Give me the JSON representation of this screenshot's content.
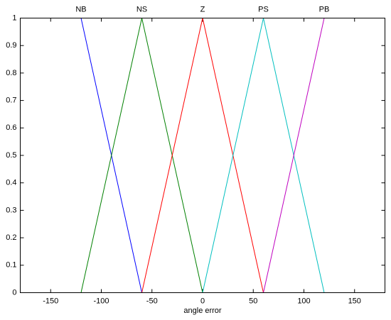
{
  "chart_data": {
    "type": "line",
    "xlabel": "angle error",
    "x": [
      -180,
      -120,
      -60,
      0,
      60,
      120,
      180
    ],
    "series": [
      {
        "name": "NB",
        "color": "#0000ff",
        "values": [
          1,
          1,
          0,
          0,
          0,
          0,
          0
        ]
      },
      {
        "name": "NS",
        "color": "#008000",
        "values": [
          0,
          0,
          1,
          0,
          0,
          0,
          0
        ]
      },
      {
        "name": "Z",
        "color": "#ff0000",
        "values": [
          0,
          0,
          0,
          1,
          0,
          0,
          0
        ]
      },
      {
        "name": "PS",
        "color": "#00bfbf",
        "values": [
          0,
          0,
          0,
          0,
          1,
          0,
          0
        ]
      },
      {
        "name": "PB",
        "color": "#bf00bf",
        "values": [
          0,
          0,
          0,
          0,
          0,
          1,
          1
        ]
      }
    ],
    "xlim": [
      -180,
      180
    ],
    "xticks": [
      -150,
      -100,
      -50,
      0,
      50,
      100,
      150
    ],
    "ylim": [
      0,
      1
    ],
    "yticks": [
      0,
      0.1,
      0.2,
      0.3,
      0.4,
      0.5,
      0.6,
      0.7,
      0.8,
      0.9,
      1
    ],
    "grid": false
  }
}
